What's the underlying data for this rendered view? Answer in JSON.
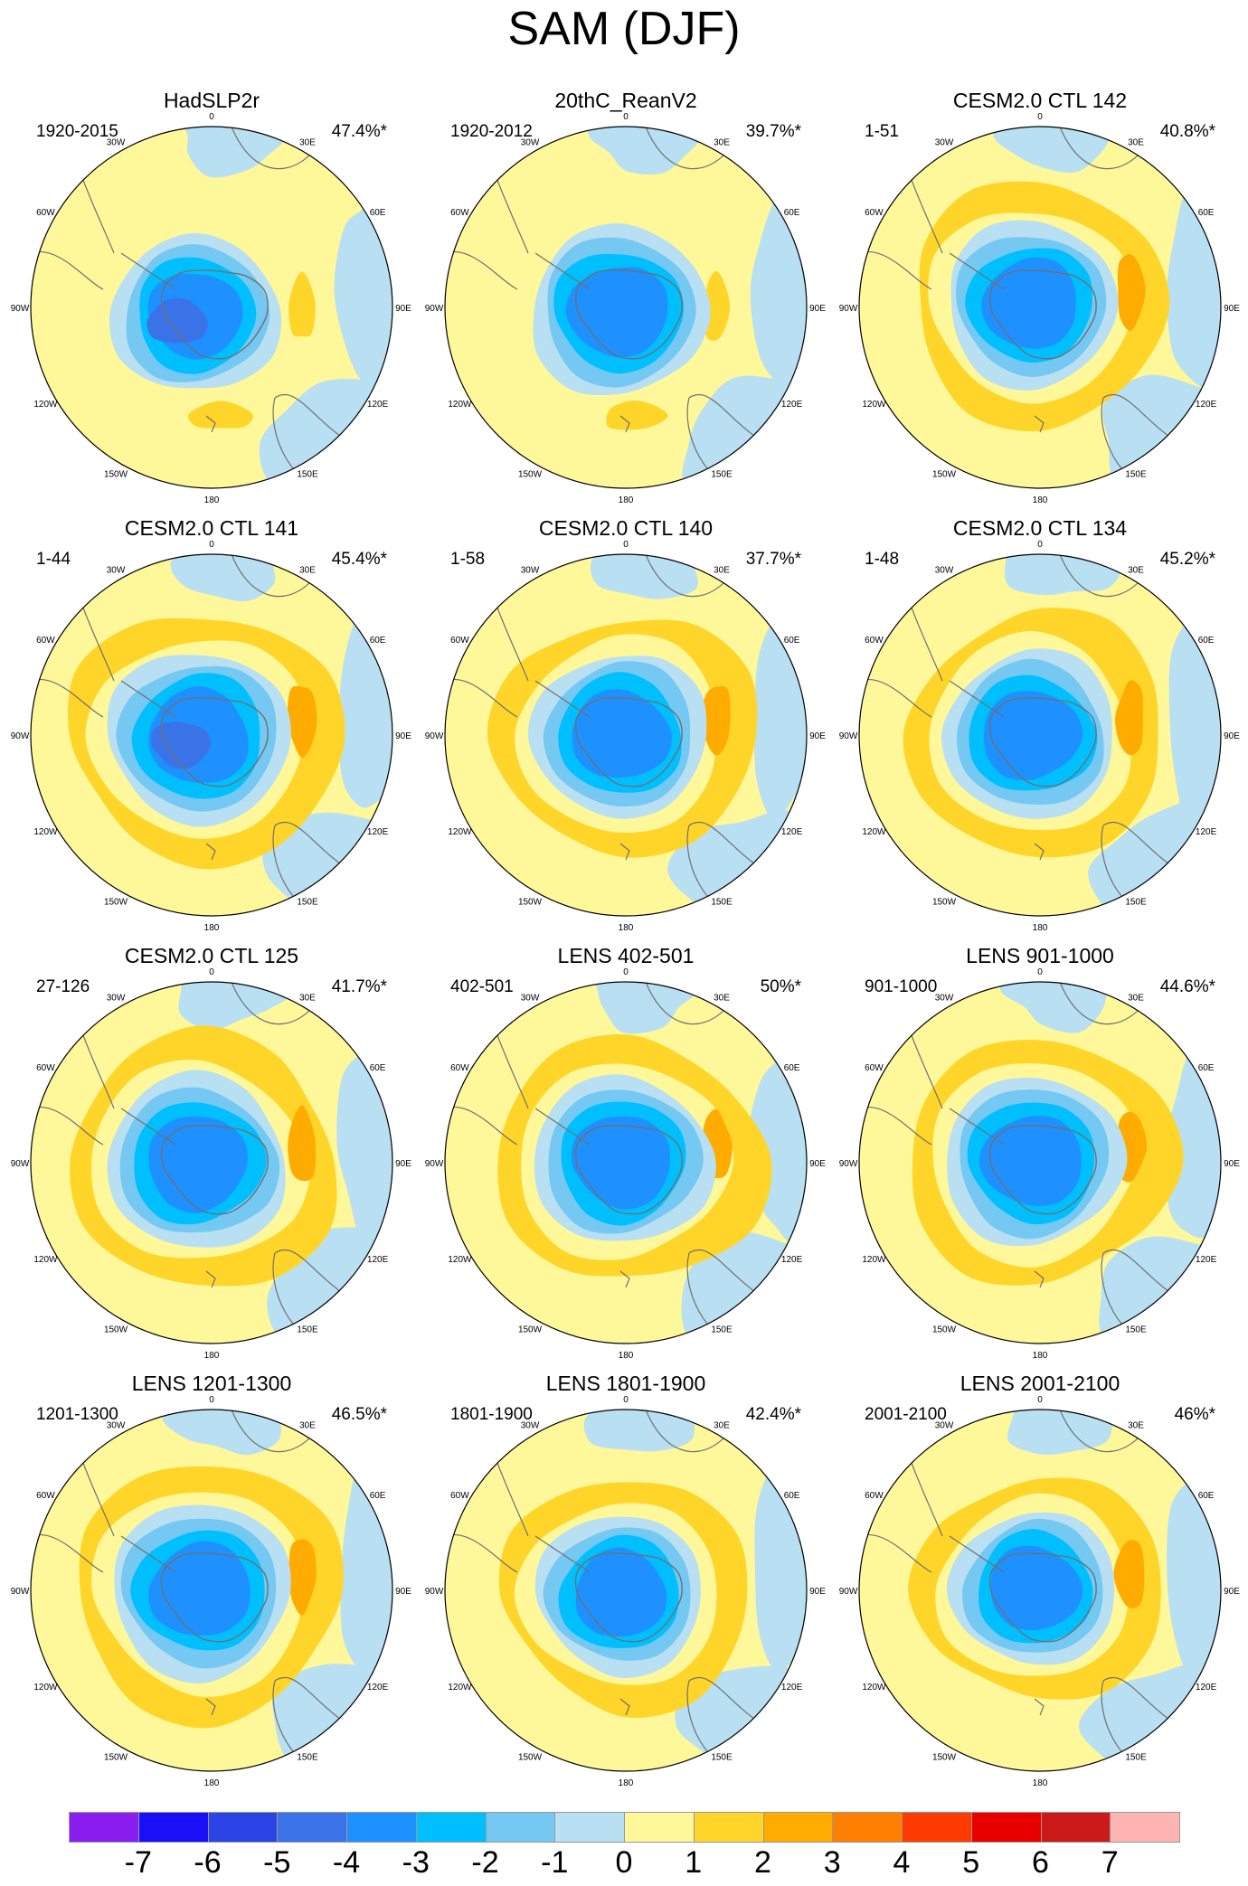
{
  "title": "SAM (DJF)",
  "palette": {
    "lev_m7": "#8a1ef0",
    "lev_m6": "#1a10f8",
    "lev_m5": "#2b44e6",
    "lev_m4": "#3a73e8",
    "lev_m3": "#1e90ff",
    "lev_m2": "#00bfff",
    "lev_m1": "#74c8f2",
    "lev_0n": "#b8dff2",
    "lev_0p": "#fff89a",
    "lev_1": "#ffd52a",
    "lev_2": "#ffab00",
    "lev_3": "#ff7f00",
    "lev_4": "#ff3a00",
    "lev_5": "#e80000",
    "lev_6": "#cc1a1a",
    "lev_7": "#ffb4b4",
    "coast": "#707070",
    "border": "#000000"
  },
  "longitude_labels": [
    "0",
    "30E",
    "60E",
    "90E",
    "120E",
    "150E",
    "180",
    "150W",
    "120W",
    "90W",
    "60W",
    "30W"
  ],
  "panels": [
    {
      "name": "HadSLP2r",
      "period": "1920-2015",
      "variance": "47.4%*"
    },
    {
      "name": "20thC_ReanV2",
      "period": "1920-2012",
      "variance": "39.7%*"
    },
    {
      "name": "CESM2.0 CTL 142",
      "period": "1-51",
      "variance": "40.8%*"
    },
    {
      "name": "CESM2.0 CTL 141",
      "period": "1-44",
      "variance": "45.4%*"
    },
    {
      "name": "CESM2.0 CTL 140",
      "period": "1-58",
      "variance": "37.7%*"
    },
    {
      "name": "CESM2.0 CTL 134",
      "period": "1-48",
      "variance": "45.2%*"
    },
    {
      "name": "CESM2.0 CTL 125",
      "period": "27-126",
      "variance": "41.7%*"
    },
    {
      "name": "LENS 402-501",
      "period": "402-501",
      "variance": "50%*"
    },
    {
      "name": "LENS 901-1000",
      "period": "901-1000",
      "variance": "44.6%*"
    },
    {
      "name": "LENS 1201-1300",
      "period": "1201-1300",
      "variance": "46.5%*"
    },
    {
      "name": "LENS 1801-1900",
      "period": "1801-1900",
      "variance": "42.4%*"
    },
    {
      "name": "LENS 2001-2100",
      "period": "2001-2100",
      "variance": "46%*"
    }
  ],
  "colorbar": {
    "colors": [
      "#8a1ef0",
      "#1a10f8",
      "#2b44e6",
      "#3a73e8",
      "#1e90ff",
      "#00bfff",
      "#74c8f2",
      "#b8dff2",
      "#fff89a",
      "#ffd52a",
      "#ffab00",
      "#ff7f00",
      "#ff3a00",
      "#e80000",
      "#cc1a1a",
      "#ffb4b4"
    ],
    "ticks": [
      "-7",
      "-6",
      "-5",
      "-4",
      "-3",
      "-2",
      "-1",
      "0",
      "1",
      "2",
      "3",
      "4",
      "5",
      "6",
      "7"
    ]
  }
}
